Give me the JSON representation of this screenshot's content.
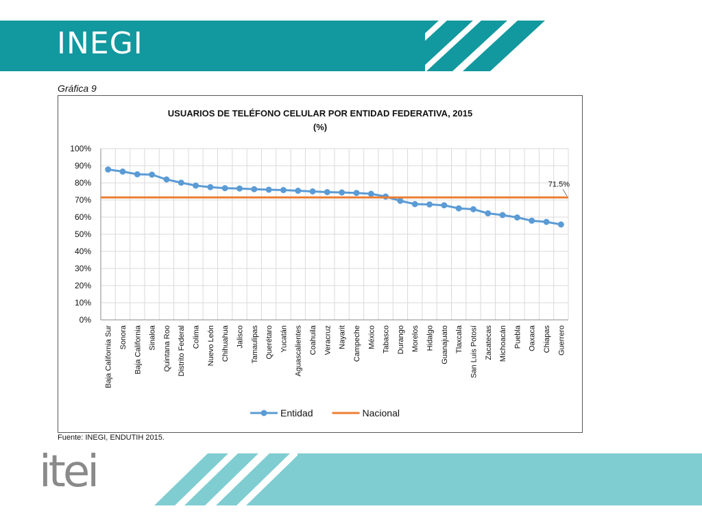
{
  "header": {
    "title": "INEGI"
  },
  "caption": "Gráfica 9",
  "source": "Fuente: INEGI, ENDUTIH 2015.",
  "logo_text": "itei",
  "colors": {
    "header_band": "#12989f",
    "footer_band": "#7fcdd1",
    "series_entidad": "#5b9bd5",
    "series_nacional": "#ed7d31"
  },
  "chart_data": {
    "type": "line",
    "title": "USUARIOS DE TELÉFONO CELULAR POR ENTIDAD FEDERATIVA, 2015",
    "subtitle": "(%)",
    "ylim": [
      0,
      100
    ],
    "yticks": [
      "0%",
      "10%",
      "20%",
      "30%",
      "40%",
      "50%",
      "60%",
      "70%",
      "80%",
      "90%",
      "100%"
    ],
    "grid": true,
    "legend_position": "bottom",
    "categories": [
      "Baja California Sur",
      "Sonora",
      "Baja California",
      "Sinaloa",
      "Quintana Roo",
      "Distrito Federal",
      "Colima",
      "Nuevo León",
      "Chihuahua",
      "Jalisco",
      "Tamaulipas",
      "Querétaro",
      "Yucatán",
      "Aguascalientes",
      "Coahuila",
      "Veracruz",
      "Nayarit",
      "Campeche",
      "México",
      "Tabasco",
      "Durango",
      "Morelos",
      "Hidalgo",
      "Guanajuato",
      "Tlaxcala",
      "San Luis Potosí",
      "Zacatecas",
      "Michoacán",
      "Puebla",
      "Oaxaca",
      "Chiapas",
      "Guerrero"
    ],
    "series": [
      {
        "name": "Entidad",
        "color": "#5b9bd5",
        "marker": true,
        "values": [
          87.8,
          86.6,
          85.0,
          84.8,
          82.0,
          80.1,
          78.4,
          77.5,
          76.9,
          76.7,
          76.3,
          76.0,
          75.8,
          75.4,
          75.0,
          74.6,
          74.4,
          74.1,
          73.6,
          72.0,
          69.5,
          67.6,
          67.4,
          66.9,
          65.1,
          64.6,
          62.2,
          61.2,
          59.8,
          57.9,
          57.2,
          55.7
        ]
      },
      {
        "name": "Nacional",
        "color": "#ed7d31",
        "marker": false,
        "values": [
          71.5,
          71.5,
          71.5,
          71.5,
          71.5,
          71.5,
          71.5,
          71.5,
          71.5,
          71.5,
          71.5,
          71.5,
          71.5,
          71.5,
          71.5,
          71.5,
          71.5,
          71.5,
          71.5,
          71.5,
          71.5,
          71.5,
          71.5,
          71.5,
          71.5,
          71.5,
          71.5,
          71.5,
          71.5,
          71.5,
          71.5,
          71.5
        ]
      }
    ],
    "annotations": [
      {
        "text": "71.5%",
        "series": "Nacional",
        "at": "end"
      }
    ]
  }
}
